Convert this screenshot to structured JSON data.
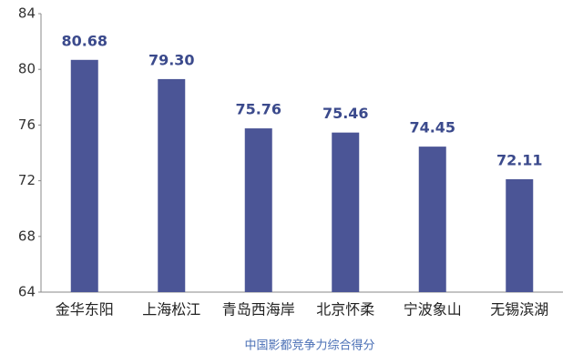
{
  "chart_data": {
    "type": "bar",
    "x_label": "中国影都竞争力综合得分",
    "categories": [
      "金华东阳",
      "上海松江",
      "青岛西海岸",
      "北京怀柔",
      "宁波象山",
      "无锡滨湖"
    ],
    "values": [
      80.68,
      79.3,
      75.76,
      75.46,
      74.45,
      72.11
    ],
    "value_labels": [
      "80.68",
      "79.30",
      "75.76",
      "75.46",
      "74.45",
      "72.11"
    ],
    "color": "#4b5596",
    "ylim": [
      64,
      84
    ],
    "yticks": [
      64,
      68,
      72,
      76,
      80,
      84
    ],
    "grid": false
  }
}
